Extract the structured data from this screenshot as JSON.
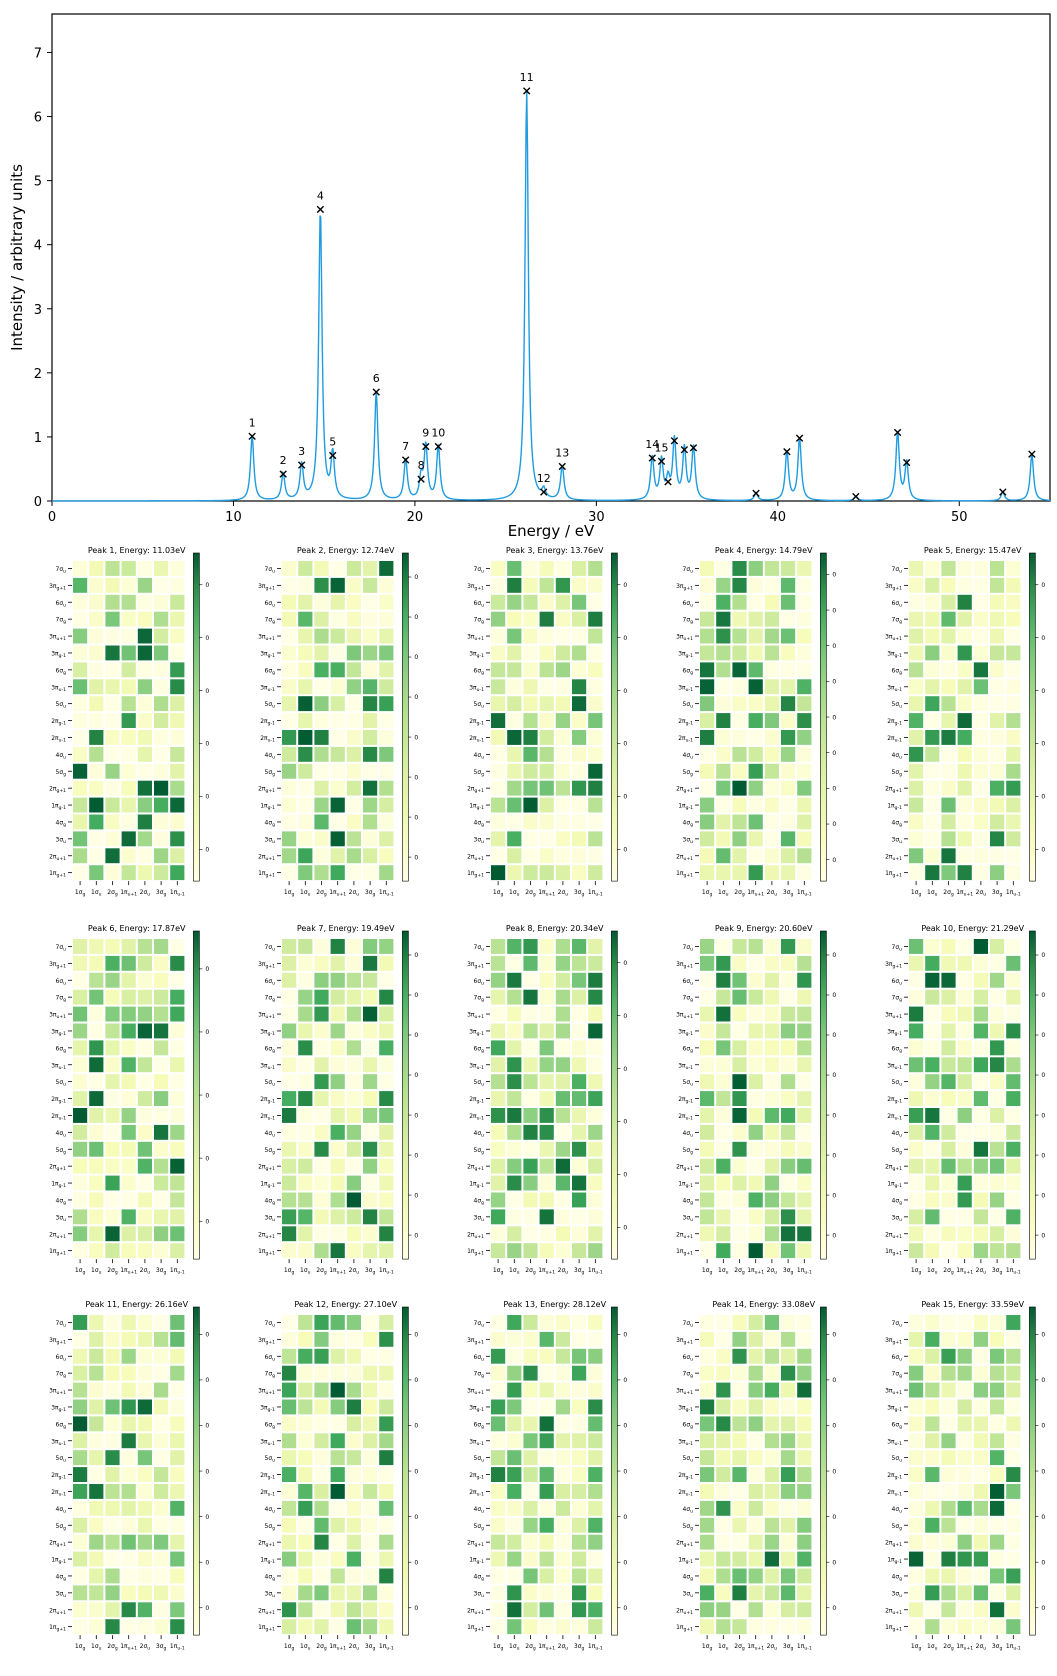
{
  "chart_data": [
    {
      "type": "line",
      "title": "",
      "xlabel": "Energy / eV",
      "ylabel": "Intensity / arbitrary units",
      "xlim": [
        0,
        55
      ],
      "ylim": [
        0,
        7.6
      ],
      "x_ticks": [
        0,
        10,
        20,
        30,
        40,
        50
      ],
      "y_ticks": [
        0,
        1,
        2,
        3,
        4,
        5,
        6,
        7
      ],
      "line_color": "#1f9be0",
      "marker": "x",
      "grid": false,
      "peaks": [
        {
          "label": "1",
          "x": 11.03,
          "y": 1.01
        },
        {
          "label": "2",
          "x": 12.74,
          "y": 0.42
        },
        {
          "label": "3",
          "x": 13.76,
          "y": 0.56
        },
        {
          "label": "4",
          "x": 14.79,
          "y": 4.55
        },
        {
          "label": "5",
          "x": 15.47,
          "y": 0.71
        },
        {
          "label": "6",
          "x": 17.87,
          "y": 1.7
        },
        {
          "label": "7",
          "x": 19.49,
          "y": 0.64
        },
        {
          "label": "8",
          "x": 20.34,
          "y": 0.34
        },
        {
          "label": "9",
          "x": 20.6,
          "y": 0.85
        },
        {
          "label": "10",
          "x": 21.29,
          "y": 0.85
        },
        {
          "label": "11",
          "x": 26.16,
          "y": 6.4
        },
        {
          "label": "12",
          "x": 27.1,
          "y": 0.14
        },
        {
          "label": "13",
          "x": 28.12,
          "y": 0.54
        },
        {
          "label": "14",
          "x": 33.08,
          "y": 0.67
        },
        {
          "label": "15",
          "x": 33.59,
          "y": 0.62
        },
        {
          "label": "",
          "x": 33.95,
          "y": 0.3
        },
        {
          "label": "",
          "x": 34.3,
          "y": 0.94
        },
        {
          "label": "",
          "x": 34.85,
          "y": 0.8
        },
        {
          "label": "",
          "x": 35.35,
          "y": 0.83
        },
        {
          "label": "",
          "x": 38.8,
          "y": 0.12
        },
        {
          "label": "",
          "x": 40.5,
          "y": 0.77
        },
        {
          "label": "",
          "x": 41.2,
          "y": 0.98
        },
        {
          "label": "",
          "x": 44.3,
          "y": 0.07
        },
        {
          "label": "",
          "x": 46.6,
          "y": 1.07
        },
        {
          "label": "",
          "x": 47.1,
          "y": 0.6
        },
        {
          "label": "",
          "x": 52.4,
          "y": 0.14
        },
        {
          "label": "",
          "x": 54.0,
          "y": 0.73
        }
      ]
    },
    {
      "type": "heatmap",
      "colormap": "Greens",
      "row_labels": [
        "7σu",
        "3πg+1",
        "6σu",
        "7σg",
        "3πu+1",
        "3πg-1",
        "6σg",
        "3πu-1",
        "5σu",
        "2πg-1",
        "2πu-1",
        "4σu",
        "5σg",
        "2πg+1",
        "1πg-1",
        "4σg",
        "3σu",
        "2πu+1",
        "1πg+1"
      ],
      "col_labels": [
        "1σg",
        "1σu",
        "2σg",
        "1πu+1",
        "2σu",
        "3σg",
        "1πu-1"
      ],
      "panels": [
        {
          "title": "Peak 1, Energy: 11.03eV",
          "colorbar_ticks": [
            "0.01",
            "0.02",
            "0.03",
            "0.04",
            "0.05",
            "0.06"
          ],
          "vmax": 0.065
        },
        {
          "title": "Peak 2, Energy: 12.74eV",
          "colorbar_ticks": [
            "0.01",
            "0.02",
            "0.03",
            "0.04",
            "0.05",
            "0.06",
            "0.07",
            "0.08"
          ],
          "vmax": 0.082
        },
        {
          "title": "Peak 3, Energy: 13.76eV",
          "colorbar_ticks": [
            "0.01",
            "0.02",
            "0.03",
            "0.04",
            "0.05",
            "0.06"
          ],
          "vmax": 0.068
        },
        {
          "title": "Peak 4, Energy: 14.79eV",
          "colorbar_ticks": [
            "0.01",
            "0.02",
            "0.03",
            "0.04",
            "0.05",
            "0.06",
            "0.07",
            "0.08",
            "0.09"
          ],
          "vmax": 0.092
        },
        {
          "title": "Peak 5, Energy: 15.47eV",
          "colorbar_ticks": [
            "0.0",
            "0.0",
            "0.0",
            "0.0",
            "0.1",
            "0.1"
          ],
          "vmax": 0.11
        },
        {
          "title": "Peak 6, Energy: 17.87eV",
          "colorbar_ticks": [
            "0.02",
            "0.04",
            "0.06",
            "0.08",
            "0.10"
          ],
          "vmax": 0.105
        },
        {
          "title": "Peak 7, Energy: 19.49eV",
          "colorbar_ticks": [
            "0.01",
            "0.02",
            "0.03",
            "0.04",
            "0.05",
            "0.06",
            "0.07",
            "0.08"
          ],
          "vmax": 0.082
        },
        {
          "title": "Peak 8, Energy: 20.34eV",
          "colorbar_ticks": [
            "0.01",
            "0.02",
            "0.03",
            "0.04",
            "0.05",
            "0.06"
          ],
          "vmax": 0.065
        },
        {
          "title": "Peak 9, Energy: 20.60eV",
          "colorbar_ticks": [
            "0.01",
            "0.02",
            "0.03",
            "0.04",
            "0.05",
            "0.06",
            "0.07",
            "0.08"
          ],
          "vmax": 0.086
        },
        {
          "title": "Peak 10, Energy: 21.29eV",
          "colorbar_ticks": [
            "0.0",
            "0.0",
            "0.0",
            "0.0",
            "0.0",
            "0.0",
            "0.0",
            "0.0"
          ],
          "vmax": 0.08
        },
        {
          "title": "Peak 11, Energy: 26.16eV",
          "colorbar_ticks": [
            "0.01",
            "0.02",
            "0.03",
            "0.04",
            "0.05",
            "0.06",
            "0.07"
          ],
          "vmax": 0.075
        },
        {
          "title": "Peak 12, Energy: 27.10eV",
          "colorbar_ticks": [
            "0.01",
            "0.02",
            "0.03",
            "0.04",
            "0.05",
            "0.06",
            "0.07"
          ],
          "vmax": 0.072
        },
        {
          "title": "Peak 13, Energy: 28.12eV",
          "colorbar_ticks": [
            "0.01",
            "0.02",
            "0.03",
            "0.04",
            "0.05",
            "0.06",
            "0.07"
          ],
          "vmax": 0.072
        },
        {
          "title": "Peak 14, Energy: 33.08eV",
          "colorbar_ticks": [
            "0.01",
            "0.02",
            "0.03",
            "0.04",
            "0.05",
            "0.06",
            "0.07"
          ],
          "vmax": 0.074
        },
        {
          "title": "Peak 15, Energy: 33.59eV",
          "colorbar_ticks": [
            "0.0",
            "0.0",
            "0.0",
            "0.0",
            "0.0",
            "0.0",
            "0.0"
          ],
          "vmax": 0.07
        }
      ]
    }
  ]
}
